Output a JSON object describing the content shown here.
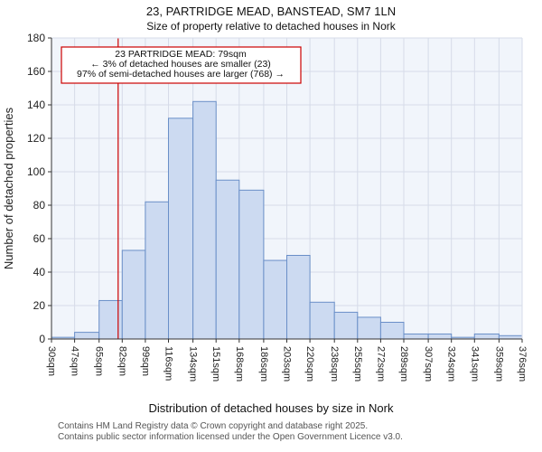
{
  "chart_data": {
    "type": "bar",
    "title": "23, PARTRIDGE MEAD, BANSTEAD, SM7 1LN",
    "subtitle": "Size of property relative to detached houses in Nork",
    "xlabel": "Distribution of detached houses by size in Nork",
    "ylabel": "Number of detached properties",
    "ylim": [
      0,
      180
    ],
    "ytick_step": 20,
    "grid": true,
    "bin_edges_sqm": [
      30,
      47,
      65,
      82,
      99,
      116,
      134,
      151,
      168,
      186,
      203,
      220,
      238,
      255,
      272,
      289,
      307,
      324,
      341,
      359,
      376
    ],
    "tick_labels": [
      "30sqm",
      "47sqm",
      "65sqm",
      "82sqm",
      "99sqm",
      "116sqm",
      "134sqm",
      "151sqm",
      "168sqm",
      "186sqm",
      "203sqm",
      "220sqm",
      "238sqm",
      "255sqm",
      "272sqm",
      "289sqm",
      "307sqm",
      "324sqm",
      "341sqm",
      "359sqm",
      "376sqm"
    ],
    "values": [
      1,
      4,
      23,
      53,
      82,
      132,
      142,
      95,
      89,
      47,
      50,
      22,
      16,
      13,
      10,
      3,
      3,
      1,
      3,
      2
    ],
    "marker": {
      "value_sqm": 79,
      "color": "#cc0000"
    },
    "annotation": {
      "lines": [
        "23 PARTRIDGE MEAD: 79sqm",
        "← 3% of detached houses are smaller (23)",
        "97% of semi-detached houses are larger (768) →"
      ],
      "border_color": "#cc0000"
    },
    "colors": {
      "bar_fill": "#ccdaf1",
      "bar_stroke": "#6a8fc8",
      "grid": "#d6dbe8",
      "plot_bg": "#f1f5fb",
      "axis": "#333333"
    }
  },
  "footer": {
    "line1": "Contains HM Land Registry data © Crown copyright and database right 2025.",
    "line2": "Contains public sector information licensed under the Open Government Licence v3.0."
  }
}
